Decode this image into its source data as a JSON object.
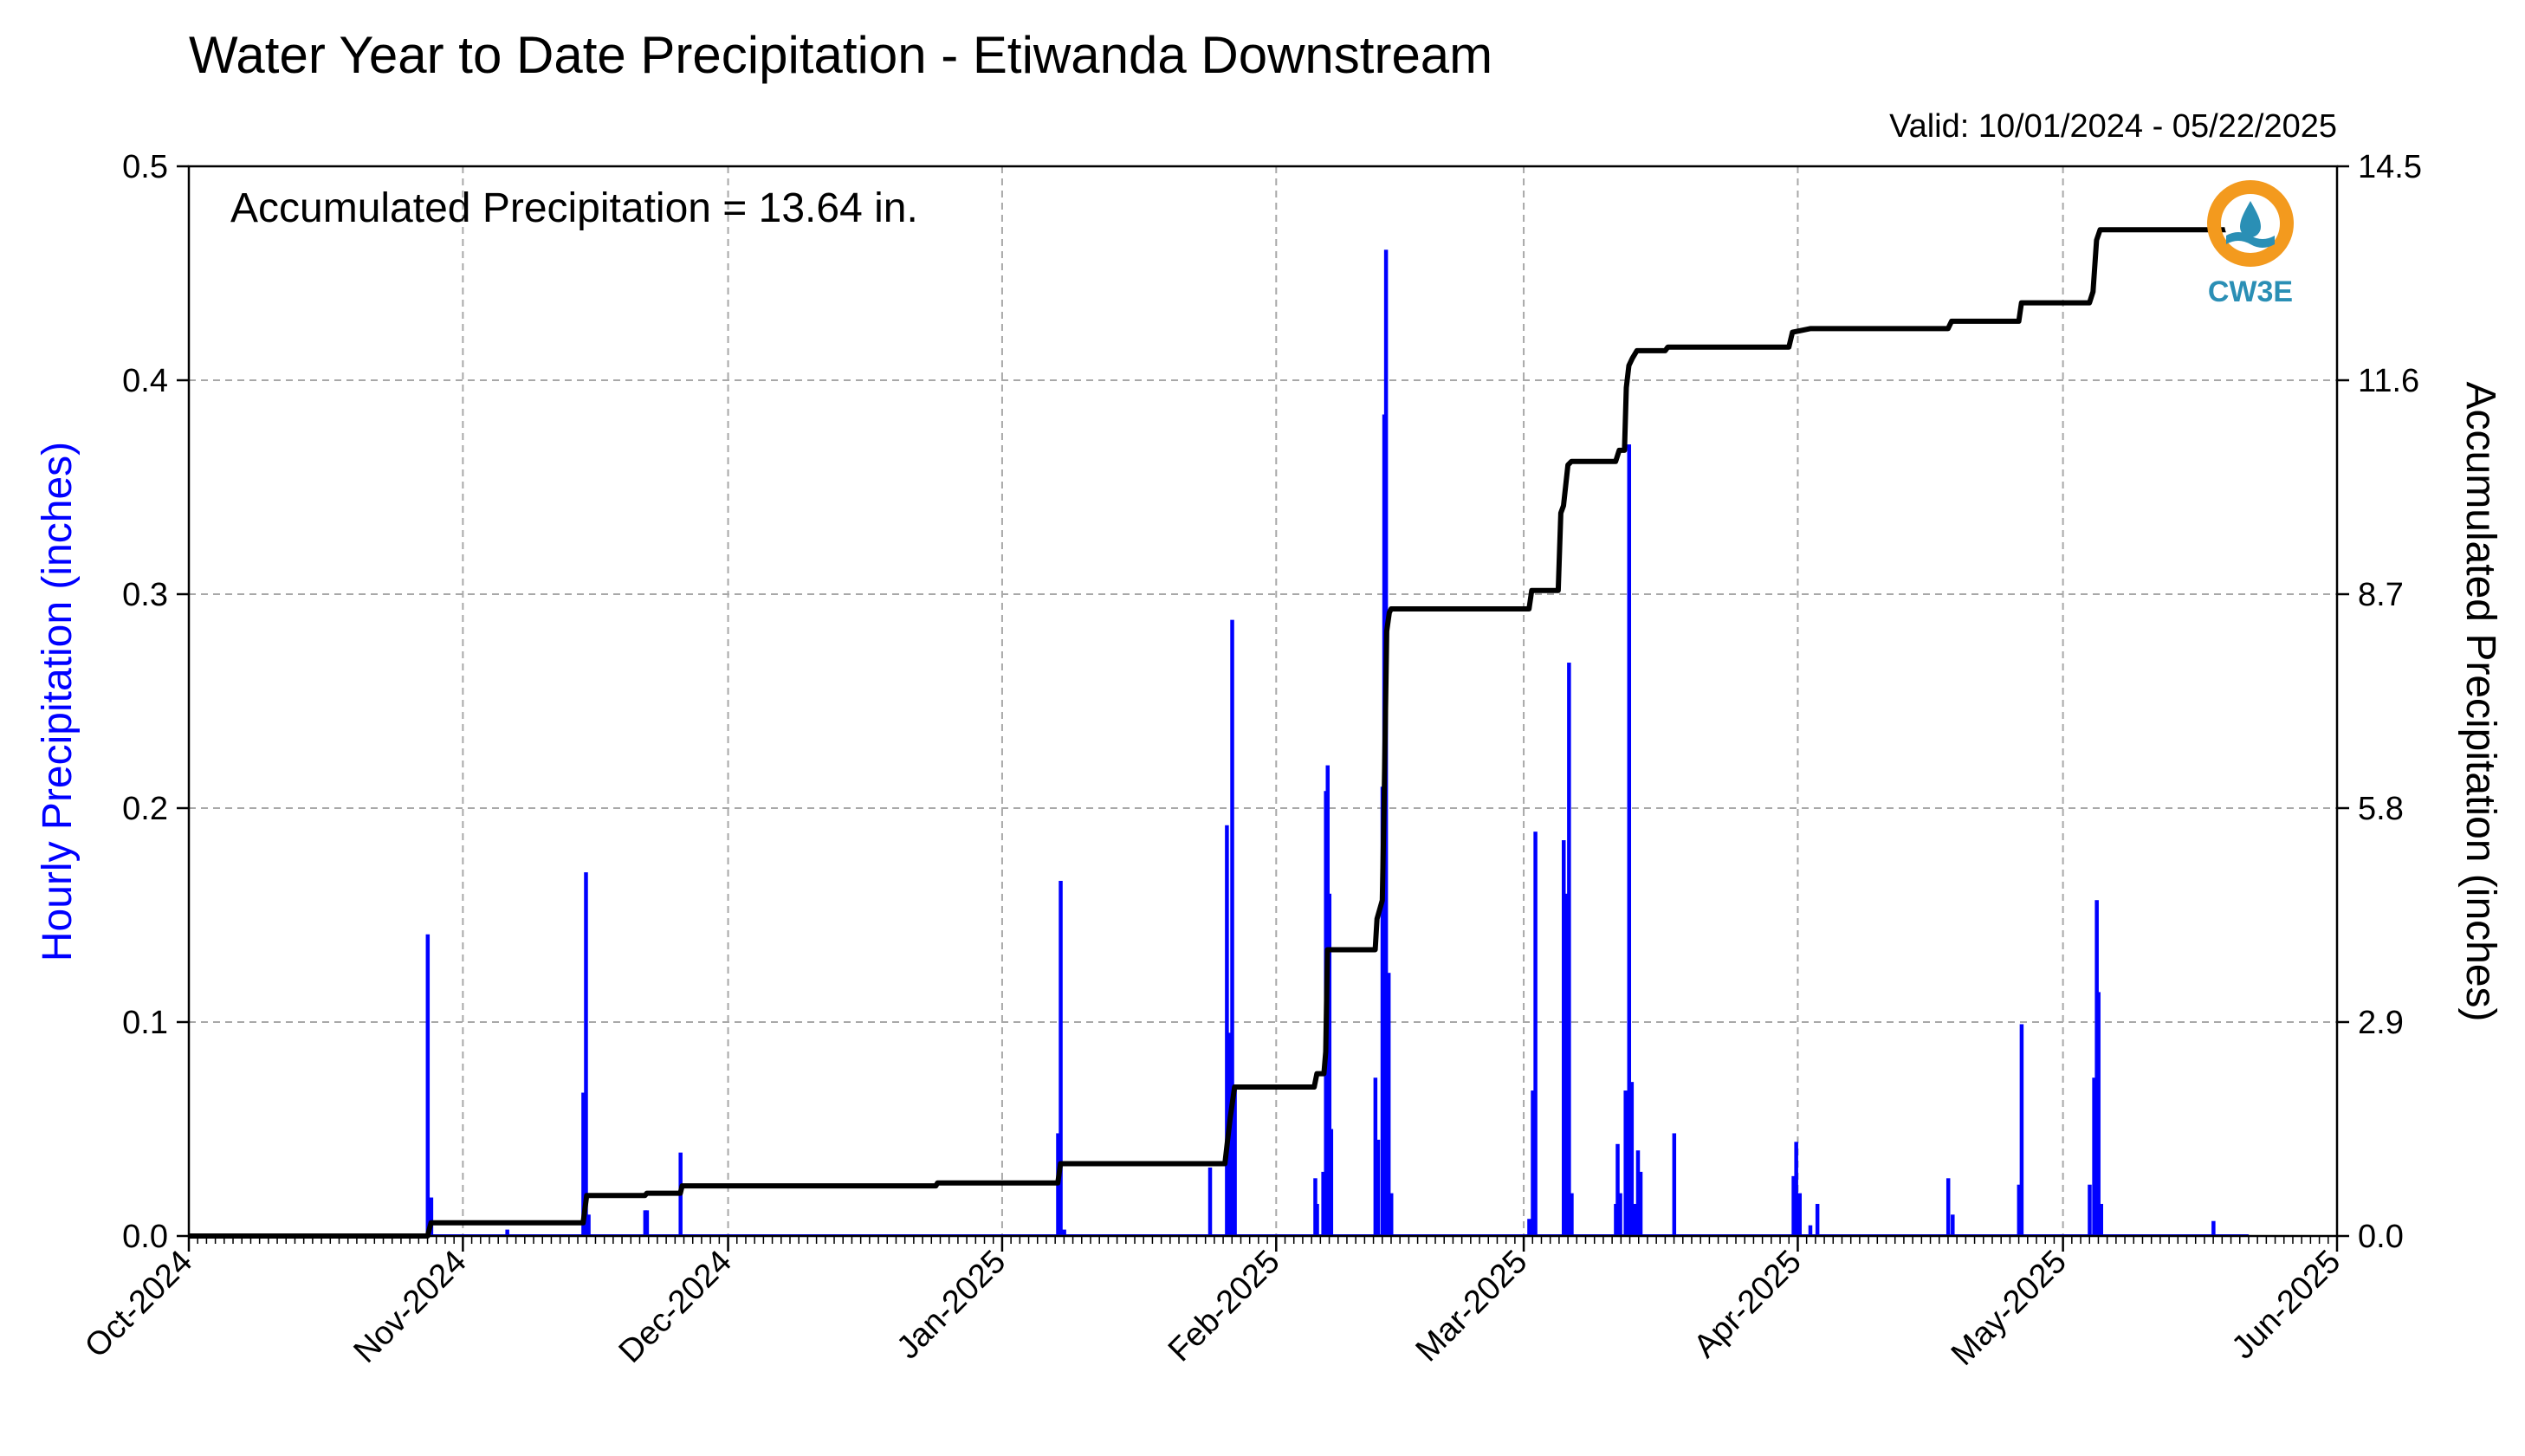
{
  "chart_data": {
    "type": "bar",
    "title": "Water Year to Date Precipitation - Etiwanda Downstream",
    "subtitle": "Valid: 10/01/2024 - 05/22/2025",
    "annotation": "Accumulated Precipitation = 13.64 in.",
    "logo_text": "CW3E",
    "xlim": [
      "2024-10-01",
      "2025-06-01"
    ],
    "x_ticks": [
      {
        "date": "2024-10-01",
        "label": "Oct-2024"
      },
      {
        "date": "2024-11-01",
        "label": "Nov-2024"
      },
      {
        "date": "2024-12-01",
        "label": "Dec-2024"
      },
      {
        "date": "2025-01-01",
        "label": "Jan-2025"
      },
      {
        "date": "2025-02-01",
        "label": "Feb-2025"
      },
      {
        "date": "2025-03-01",
        "label": "Mar-2025"
      },
      {
        "date": "2025-04-01",
        "label": "Apr-2025"
      },
      {
        "date": "2025-05-01",
        "label": "May-2025"
      },
      {
        "date": "2025-06-01",
        "label": "Jun-2025"
      }
    ],
    "left_axis": {
      "label": "Hourly Precipitation (inches)",
      "ylim": [
        0,
        0.5
      ],
      "ticks": [
        "0.0",
        "0.1",
        "0.2",
        "0.3",
        "0.4",
        "0.5"
      ],
      "color": "#0000ff"
    },
    "right_axis": {
      "label": "Accumulated Precipitation (inches)",
      "ylim": [
        0,
        14.5
      ],
      "ticks": [
        "0.0",
        "2.9",
        "5.8",
        "8.7",
        "11.6",
        "14.5"
      ],
      "color": "#000000"
    },
    "grid": true,
    "series": [
      {
        "kind": "bar",
        "color": "#0000ff",
        "axis": "left",
        "points": [
          [
            "2024-10-28",
            0.141
          ],
          [
            "2024-10-28.4",
            0.018
          ],
          [
            "2024-11-06",
            0.003
          ],
          [
            "2024-11-14.6",
            0.067
          ],
          [
            "2024-11-14.9",
            0.17
          ],
          [
            "2024-11-15.2",
            0.01
          ],
          [
            "2024-11-21.6",
            0.012
          ],
          [
            "2024-11-21.8",
            0.012
          ],
          [
            "2024-11-25.6",
            0.039
          ],
          [
            "2025-01-24.5",
            0.032
          ],
          [
            "2025-01-07.6",
            0.166
          ],
          [
            "2025-01-07.3",
            0.048
          ],
          [
            "2025-01-08",
            0.003
          ],
          [
            "2025-01-26.4",
            0.192
          ],
          [
            "2025-01-26.7",
            0.095
          ],
          [
            "2025-01-27",
            0.288
          ],
          [
            "2025-01-27.3",
            0.07
          ],
          [
            "2025-02-05.4",
            0.027
          ],
          [
            "2025-02-05.6",
            0.015
          ],
          [
            "2025-02-06.3",
            0.03
          ],
          [
            "2025-02-06.6",
            0.208
          ],
          [
            "2025-02-06.8",
            0.22
          ],
          [
            "2025-02-07.0",
            0.16
          ],
          [
            "2025-02-07.2",
            0.05
          ],
          [
            "2025-02-12.2",
            0.074
          ],
          [
            "2025-02-12.5",
            0.045
          ],
          [
            "2025-02-13.0",
            0.21
          ],
          [
            "2025-02-13.2",
            0.384
          ],
          [
            "2025-02-13.4",
            0.461
          ],
          [
            "2025-02-13.7",
            0.123
          ],
          [
            "2025-02-14.0",
            0.02
          ],
          [
            "2025-03-01.6",
            0.008
          ],
          [
            "2025-03-02.0",
            0.068
          ],
          [
            "2025-03-02.3",
            0.189
          ],
          [
            "2025-03-05.5",
            0.185
          ],
          [
            "2025-03-05.8",
            0.16
          ],
          [
            "2025-03-06.1",
            0.268
          ],
          [
            "2025-03-06.4",
            0.02
          ],
          [
            "2025-03-11.4",
            0.015
          ],
          [
            "2025-03-11.6",
            0.043
          ],
          [
            "2025-03-11.9",
            0.02
          ],
          [
            "2025-03-12.5",
            0.068
          ],
          [
            "2025-03-12.9",
            0.37
          ],
          [
            "2025-03-13.2",
            0.072
          ],
          [
            "2025-03-13.6",
            0.015
          ],
          [
            "2025-03-13.9",
            0.04
          ],
          [
            "2025-03-14.2",
            0.03
          ],
          [
            "2025-03-18.0",
            0.048
          ],
          [
            "2025-03-31.5",
            0.028
          ],
          [
            "2025-03-31.8",
            0.044
          ],
          [
            "2025-04-01.2",
            0.02
          ],
          [
            "2025-04-02.4",
            0.005
          ],
          [
            "2025-04-03.2",
            0.015
          ],
          [
            "2025-04-18.0",
            0.027
          ],
          [
            "2025-04-18.5",
            0.01
          ],
          [
            "2025-04-26.0",
            0.024
          ],
          [
            "2025-04-26.3",
            0.099
          ],
          [
            "2025-05-04.0",
            0.024
          ],
          [
            "2025-05-04.5",
            0.074
          ],
          [
            "2025-05-04.8",
            0.157
          ],
          [
            "2025-05-05.0",
            0.114
          ],
          [
            "2025-05-05.3",
            0.015
          ],
          [
            "2025-05-18.0",
            0.007
          ]
        ]
      },
      {
        "kind": "step-line",
        "color": "#000000",
        "axis": "right",
        "points": [
          [
            "2024-10-01",
            0.0
          ],
          [
            "2024-10-28",
            0.0
          ],
          [
            "2024-10-28.4",
            0.18
          ],
          [
            "2024-11-14.6",
            0.18
          ],
          [
            "2024-11-15",
            0.55
          ],
          [
            "2024-11-21.6",
            0.55
          ],
          [
            "2024-11-21.8",
            0.58
          ],
          [
            "2024-11-25.6",
            0.58
          ],
          [
            "2024-11-25.8",
            0.68
          ],
          [
            "2024-12-24.5",
            0.68
          ],
          [
            "2024-12-24.7",
            0.72
          ],
          [
            "2025-01-07.3",
            0.72
          ],
          [
            "2025-01-07.6",
            0.98
          ],
          [
            "2025-01-26.2",
            0.98
          ],
          [
            "2025-01-26.5",
            1.3
          ],
          [
            "2025-01-26.8",
            1.6
          ],
          [
            "2025-01-27.3",
            2.02
          ],
          [
            "2025-02-05.3",
            2.02
          ],
          [
            "2025-02-05.6",
            2.2
          ],
          [
            "2025-02-06.4",
            2.2
          ],
          [
            "2025-02-06.6",
            2.5
          ],
          [
            "2025-02-06.8",
            3.88
          ],
          [
            "2025-02-12.2",
            3.88
          ],
          [
            "2025-02-12.4",
            4.3
          ],
          [
            "2025-02-13.0",
            4.55
          ],
          [
            "2025-02-13.2",
            5.8
          ],
          [
            "2025-02-13.5",
            8.2
          ],
          [
            "2025-02-13.8",
            8.45
          ],
          [
            "2025-02-14",
            8.5
          ],
          [
            "2025-03-01.6",
            8.5
          ],
          [
            "2025-03-01.9",
            8.75
          ],
          [
            "2025-03-04.9",
            8.75
          ],
          [
            "2025-03-05.2",
            9.8
          ],
          [
            "2025-03-05.5",
            9.9
          ],
          [
            "2025-03-06.0",
            10.45
          ],
          [
            "2025-03-06.4",
            10.5
          ],
          [
            "2025-03-11.4",
            10.5
          ],
          [
            "2025-03-11.8",
            10.65
          ],
          [
            "2025-03-12.4",
            10.65
          ],
          [
            "2025-03-12.6",
            11.5
          ],
          [
            "2025-03-12.9",
            11.8
          ],
          [
            "2025-03-13.3",
            11.9
          ],
          [
            "2025-03-13.8",
            12.0
          ],
          [
            "2025-03-17.0",
            12.0
          ],
          [
            "2025-03-17.3",
            12.05
          ],
          [
            "2025-03-31.0",
            12.05
          ],
          [
            "2025-03-31.4",
            12.25
          ],
          [
            "2025-04-01.2",
            12.27
          ],
          [
            "2025-04-02.4",
            12.3
          ],
          [
            "2025-04-18.0",
            12.3
          ],
          [
            "2025-04-18.4",
            12.4
          ],
          [
            "2025-04-26.0",
            12.4
          ],
          [
            "2025-04-26.3",
            12.65
          ],
          [
            "2025-05-04.0",
            12.65
          ],
          [
            "2025-05-04.4",
            12.8
          ],
          [
            "2025-05-04.8",
            13.5
          ],
          [
            "2025-05-05.2",
            13.64
          ],
          [
            "2025-05-22",
            13.64
          ]
        ]
      }
    ]
  }
}
